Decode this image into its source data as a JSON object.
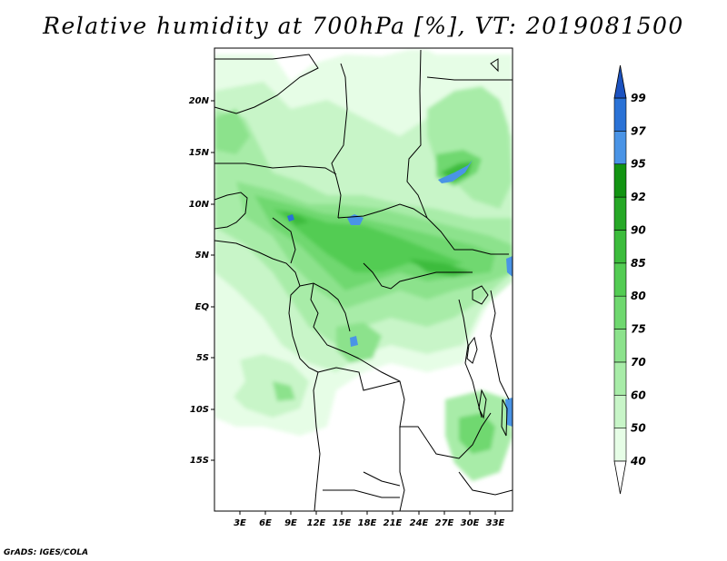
{
  "title": "Relative humidity at 700hPa [%], VT: 2019081500",
  "credit": "GrADS: IGES/COLA",
  "axes": {
    "lat_labels": [
      "20N",
      "15N",
      "10N",
      "5N",
      "EQ",
      "5S",
      "10S",
      "15S"
    ],
    "lon_labels": [
      "3E",
      "6E",
      "9E",
      "12E",
      "15E",
      "18E",
      "21E",
      "24E",
      "27E",
      "30E",
      "33E"
    ]
  },
  "colorbar": {
    "levels": [
      "40",
      "50",
      "60",
      "70",
      "75",
      "80",
      "85",
      "90",
      "92",
      "95",
      "97",
      "99"
    ],
    "colors": [
      "#ffffff",
      "#e6fde6",
      "#c8f5c8",
      "#a8eca8",
      "#8ce28c",
      "#6fd86f",
      "#53cc53",
      "#3cbc3c",
      "#26a826",
      "#129412",
      "#4a94e6",
      "#2a72d6",
      "#1c52c0"
    ]
  }
}
